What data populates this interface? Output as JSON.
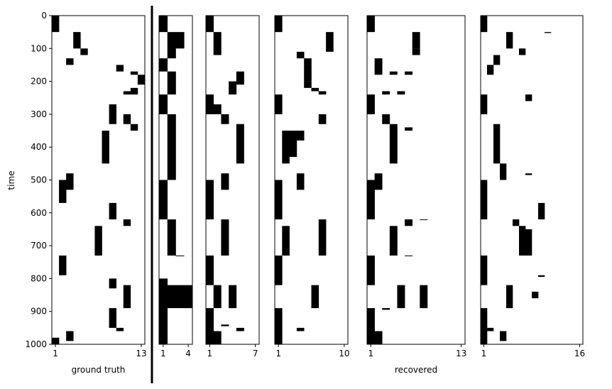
{
  "chart_data": [
    {
      "type": "heatmap",
      "caption": "ground truth",
      "ylabel": "time",
      "ylim": [
        0,
        1000
      ],
      "yticks": [
        0,
        100,
        200,
        300,
        400,
        500,
        600,
        700,
        800,
        900,
        1000
      ],
      "ncols": 13,
      "xticks": [
        1,
        13
      ],
      "cells": [
        [
          1,
          0,
          50
        ],
        [
          1,
          980,
          1000
        ],
        [
          2,
          500,
          570
        ],
        [
          2,
          730,
          790
        ],
        [
          3,
          130,
          150
        ],
        [
          3,
          480,
          530
        ],
        [
          3,
          960,
          990
        ],
        [
          4,
          50,
          100
        ],
        [
          5,
          100,
          120
        ],
        [
          7,
          640,
          730
        ],
        [
          8,
          350,
          450
        ],
        [
          9,
          270,
          330
        ],
        [
          9,
          570,
          620
        ],
        [
          9,
          800,
          830
        ],
        [
          9,
          890,
          950
        ],
        [
          10,
          150,
          170
        ],
        [
          10,
          950,
          960
        ],
        [
          11,
          230,
          240
        ],
        [
          11,
          300,
          330
        ],
        [
          11,
          820,
          890
        ],
        [
          11,
          620,
          640
        ],
        [
          12,
          170,
          180
        ],
        [
          12,
          330,
          350
        ],
        [
          12,
          220,
          240
        ],
        [
          13,
          180,
          210
        ]
      ]
    },
    {
      "type": "heatmap",
      "caption": "",
      "ylim": [
        0,
        1000
      ],
      "ncols": 4,
      "xticks": [
        1,
        4
      ],
      "cells": [
        [
          1,
          0,
          50
        ],
        [
          1,
          130,
          170
        ],
        [
          1,
          240,
          300
        ],
        [
          1,
          500,
          620
        ],
        [
          1,
          800,
          1000
        ],
        [
          2,
          50,
          130
        ],
        [
          2,
          170,
          240
        ],
        [
          2,
          300,
          500
        ],
        [
          2,
          620,
          730
        ],
        [
          2,
          820,
          890
        ],
        [
          3,
          50,
          100
        ],
        [
          3,
          730,
          732
        ],
        [
          3,
          820,
          890
        ],
        [
          4,
          820,
          890
        ]
      ]
    },
    {
      "type": "heatmap",
      "caption": "",
      "ylim": [
        0,
        1000
      ],
      "ncols": 7,
      "xticks": [
        1,
        7
      ],
      "cells": [
        [
          1,
          0,
          50
        ],
        [
          1,
          240,
          300
        ],
        [
          1,
          500,
          620
        ],
        [
          1,
          730,
          820
        ],
        [
          1,
          890,
          1000
        ],
        [
          2,
          50,
          120
        ],
        [
          2,
          270,
          300
        ],
        [
          2,
          820,
          890
        ],
        [
          2,
          960,
          1000
        ],
        [
          3,
          300,
          330
        ],
        [
          3,
          480,
          530
        ],
        [
          3,
          620,
          730
        ],
        [
          3,
          940,
          945
        ],
        [
          4,
          200,
          240
        ],
        [
          4,
          820,
          890
        ],
        [
          5,
          170,
          210
        ],
        [
          5,
          330,
          450
        ],
        [
          5,
          950,
          960
        ]
      ]
    },
    {
      "type": "heatmap",
      "caption": "",
      "ylim": [
        0,
        1000
      ],
      "ncols": 10,
      "xticks": [
        1,
        10
      ],
      "cells": [
        [
          1,
          0,
          50
        ],
        [
          1,
          240,
          300
        ],
        [
          1,
          500,
          620
        ],
        [
          1,
          730,
          820
        ],
        [
          1,
          890,
          1000
        ],
        [
          2,
          350,
          450
        ],
        [
          2,
          640,
          730
        ],
        [
          3,
          350,
          430
        ],
        [
          4,
          110,
          130
        ],
        [
          4,
          350,
          380
        ],
        [
          4,
          480,
          530
        ],
        [
          4,
          950,
          960
        ],
        [
          5,
          130,
          150
        ],
        [
          5,
          150,
          200
        ],
        [
          5,
          200,
          220
        ],
        [
          6,
          220,
          230
        ],
        [
          6,
          820,
          890
        ],
        [
          7,
          230,
          240
        ],
        [
          7,
          300,
          330
        ],
        [
          7,
          620,
          730
        ],
        [
          8,
          50,
          110
        ]
      ]
    },
    {
      "type": "heatmap",
      "caption": "recovered",
      "ylim": [
        0,
        1000
      ],
      "ncols": 13,
      "xticks": [
        1,
        13
      ],
      "cells": [
        [
          1,
          0,
          50
        ],
        [
          1,
          240,
          300
        ],
        [
          1,
          500,
          620
        ],
        [
          1,
          730,
          820
        ],
        [
          1,
          890,
          1000
        ],
        [
          2,
          130,
          180
        ],
        [
          2,
          480,
          530
        ],
        [
          2,
          960,
          1000
        ],
        [
          3,
          230,
          240
        ],
        [
          3,
          300,
          330
        ],
        [
          3,
          890,
          895
        ],
        [
          4,
          170,
          180
        ],
        [
          4,
          330,
          450
        ],
        [
          4,
          640,
          730
        ],
        [
          5,
          230,
          240
        ],
        [
          5,
          820,
          890
        ],
        [
          6,
          170,
          180
        ],
        [
          6,
          620,
          640
        ],
        [
          6,
          730,
          732
        ],
        [
          6,
          340,
          350
        ],
        [
          7,
          100,
          120
        ],
        [
          7,
          50,
          100
        ],
        [
          8,
          820,
          890
        ],
        [
          8,
          620,
          622
        ]
      ]
    },
    {
      "type": "heatmap",
      "caption": "",
      "ylim": [
        0,
        1000
      ],
      "ncols": 16,
      "xticks": [
        1,
        16
      ],
      "cells": [
        [
          1,
          0,
          50
        ],
        [
          1,
          240,
          300
        ],
        [
          1,
          500,
          620
        ],
        [
          1,
          730,
          820
        ],
        [
          1,
          890,
          1000
        ],
        [
          2,
          150,
          180
        ],
        [
          2,
          950,
          960
        ],
        [
          3,
          120,
          150
        ],
        [
          3,
          330,
          450
        ],
        [
          4,
          450,
          500
        ],
        [
          4,
          960,
          990
        ],
        [
          5,
          50,
          100
        ],
        [
          5,
          820,
          890
        ],
        [
          6,
          620,
          640
        ],
        [
          7,
          100,
          120
        ],
        [
          7,
          640,
          730
        ],
        [
          8,
          240,
          260
        ],
        [
          8,
          480,
          485
        ],
        [
          8,
          650,
          730
        ],
        [
          9,
          840,
          860
        ],
        [
          10,
          570,
          620
        ],
        [
          10,
          790,
          795
        ],
        [
          11,
          50,
          53
        ]
      ]
    }
  ]
}
